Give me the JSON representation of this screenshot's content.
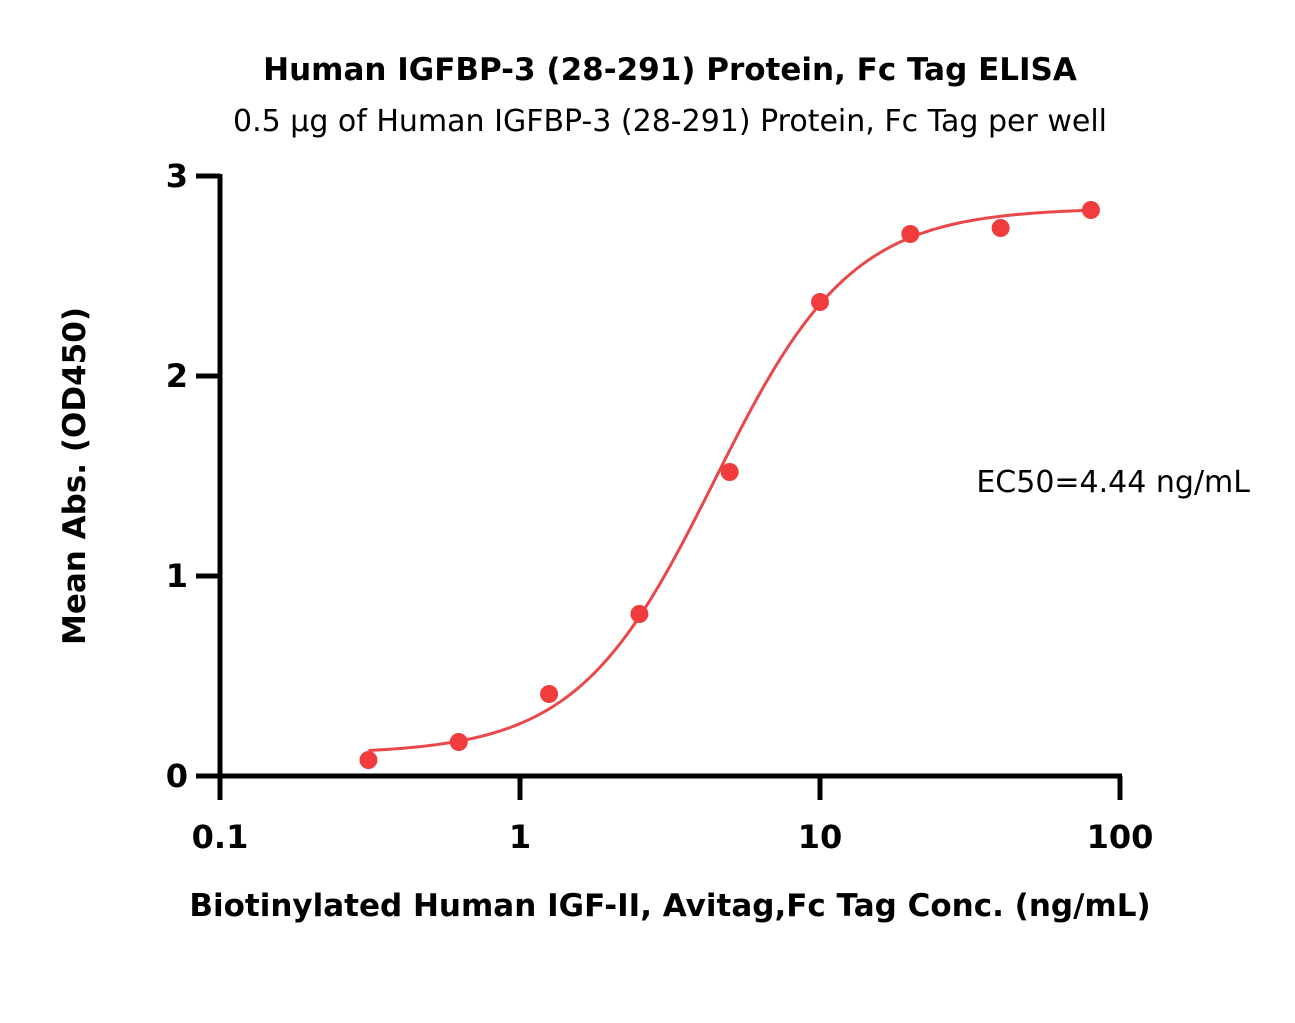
{
  "chart_data": {
    "type": "scatter",
    "title": "Human IGFBP-3 (28-291) Protein, Fc Tag ELISA",
    "subtitle": "0.5 µg of Human IGFBP-3 (28-291) Protein, Fc Tag per well",
    "xlabel": "Biotinylated Human IGF-II, Avitag,Fc Tag Conc. (ng/mL)",
    "ylabel": "Mean Abs. (OD450)",
    "x_scale": "log",
    "xlim": [
      0.1,
      100
    ],
    "ylim": [
      0,
      3
    ],
    "x_ticks": [
      "0.1",
      "1",
      "10",
      "100"
    ],
    "y_ticks": [
      "0",
      "1",
      "2",
      "3"
    ],
    "grid": false,
    "series": [
      {
        "x": [
          0.3125,
          0.625,
          1.25,
          2.5,
          5,
          10,
          20,
          40,
          80
        ],
        "values": [
          0.08,
          0.17,
          0.41,
          0.81,
          1.52,
          2.37,
          2.71,
          2.74,
          2.83
        ],
        "color": "#f03c3c"
      }
    ],
    "fit": {
      "model": "4PL",
      "bottom": 0.11,
      "top": 2.84,
      "ec50": 4.44,
      "hill": 1.9,
      "color": "#e8484a"
    },
    "annotation": "EC50=4.44 ng/mL"
  }
}
